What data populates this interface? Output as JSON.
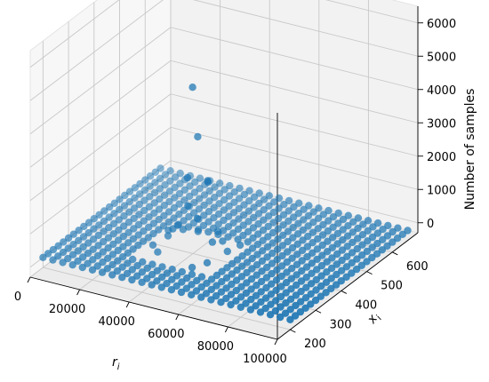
{
  "chart_data": {
    "type": "scatter",
    "projection": "3d",
    "xlabel": "r",
    "xlabel_sub": "i",
    "ylabel": "x",
    "ylabel_sub": "i",
    "zlabel": "Number of samples",
    "x_ticks": [
      0,
      20000,
      40000,
      60000,
      80000,
      100000
    ],
    "x_tick_labels": [
      "0",
      "20000",
      "40000",
      "60000",
      "80000",
      "100000"
    ],
    "y_ticks": [
      200,
      300,
      400,
      500,
      600
    ],
    "y_tick_labels": [
      "200",
      "300",
      "400",
      "500",
      "600"
    ],
    "z_ticks": [
      0,
      1000,
      2000,
      3000,
      4000,
      5000,
      6000
    ],
    "z_tick_labels": [
      "0",
      "1000",
      "2000",
      "3000",
      "4000",
      "5000",
      "6000"
    ],
    "xlim": [
      0,
      100000
    ],
    "ylim": [
      150,
      700
    ],
    "zlim": [
      -300,
      6500
    ],
    "grid": true,
    "marker_color": "#1f77b4",
    "base_grid": {
      "x_start": 0,
      "x_step": 4000,
      "x_count": 26,
      "y_start": 200,
      "y_step": 20,
      "y_count": 24,
      "z": 0,
      "missing_x_range": [
        26000,
        58000
      ],
      "missing_y_range": [
        300,
        440
      ]
    },
    "points": [
      {
        "x": 44000,
        "y": 360,
        "z": 5000
      },
      {
        "x": 44000,
        "y": 380,
        "z": 3400
      },
      {
        "x": 44000,
        "y": 340,
        "z": 2400
      },
      {
        "x": 48000,
        "y": 380,
        "z": 2150
      },
      {
        "x": 44000,
        "y": 420,
        "z": 1800
      },
      {
        "x": 40000,
        "y": 380,
        "z": 1250
      },
      {
        "x": 48000,
        "y": 340,
        "z": 1250
      },
      {
        "x": 40000,
        "y": 340,
        "z": 900
      },
      {
        "x": 36000,
        "y": 360,
        "z": 600
      },
      {
        "x": 52000,
        "y": 360,
        "z": 500
      },
      {
        "x": 36000,
        "y": 400,
        "z": 350
      },
      {
        "x": 52000,
        "y": 400,
        "z": 300
      },
      {
        "x": 48000,
        "y": 420,
        "z": 400
      },
      {
        "x": 40000,
        "y": 420,
        "z": 250
      },
      {
        "x": 32000,
        "y": 380,
        "z": 200
      },
      {
        "x": 56000,
        "y": 380,
        "z": 180
      },
      {
        "x": 30000,
        "y": 340,
        "z": 120
      },
      {
        "x": 54000,
        "y": 320,
        "z": 150
      },
      {
        "x": 34000,
        "y": 320,
        "z": 100
      },
      {
        "x": 28000,
        "y": 420,
        "z": 60
      },
      {
        "x": 56000,
        "y": 430,
        "z": 80
      },
      {
        "x": 50000,
        "y": 300,
        "z": 50
      }
    ]
  }
}
